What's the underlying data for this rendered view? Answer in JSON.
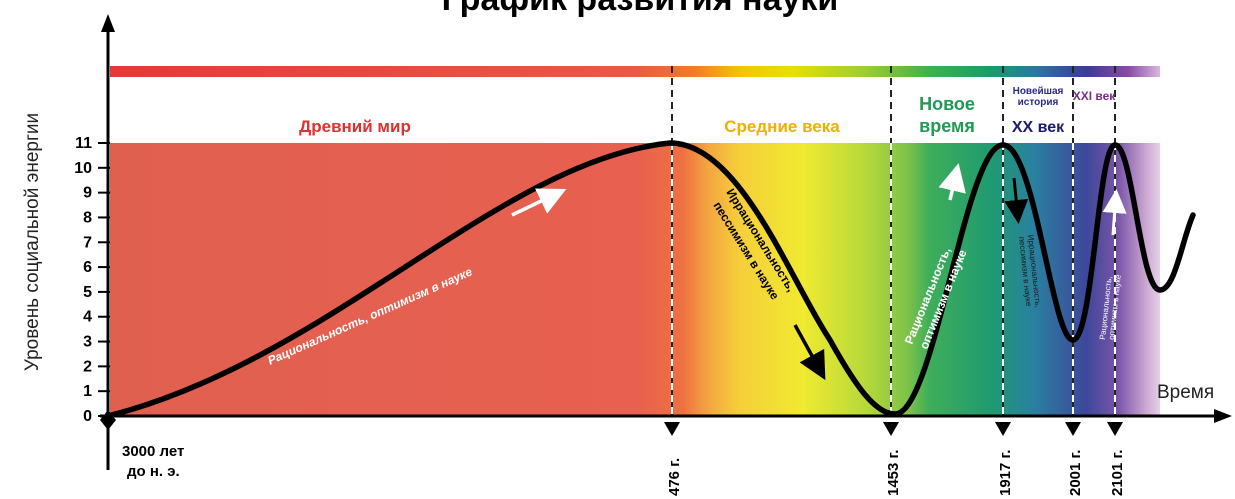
{
  "title": "График развития науки",
  "y_axis_label": "Уровень социальной энергии",
  "x_axis_label": "Время",
  "y_ticks": [
    "0",
    "1",
    "2",
    "3",
    "4",
    "5",
    "6",
    "7",
    "8",
    "9",
    "10",
    "11"
  ],
  "eras": [
    {
      "name": "Древний мир",
      "color": "#e53935"
    },
    {
      "name": "Средние века",
      "color": "#f0b400"
    },
    {
      "name_line1": "Новое",
      "name_line2": "время",
      "color": "#1e9a55"
    },
    {
      "small_line1": "Новейшая",
      "small_line2": "история",
      "name": "XX век",
      "color": "#2a2a8c"
    },
    {
      "name": "XXI век",
      "color": "#7b2d8e"
    }
  ],
  "date_labels": [
    {
      "line1": "3000 лет",
      "line2": "до н. э."
    },
    {
      "text": "476 г."
    },
    {
      "text": "1453 г."
    },
    {
      "text": "1917 г."
    },
    {
      "text": "2001 г."
    },
    {
      "text": "2101 г."
    }
  ],
  "annotations": {
    "ancient_rise": "Рациональность, оптимизм в науке",
    "medieval_fall_1": "Иррациональность,",
    "medieval_fall_2": "пессимизм в науке",
    "modern_rise_1": "Рациональность,",
    "modern_rise_2": "оптимизм в науке",
    "c20_fall_1": "Иррациональность,",
    "c20_fall_2": "пессимизм в науке",
    "c21_rise_1": "Рациональность,",
    "c21_rise_2": "оптимизм в науке"
  },
  "chart_data": {
    "type": "line",
    "x": [
      "3000 лет до н. э.",
      "476 г.",
      "1453 г.",
      "1917 г.",
      "2001 г.",
      "2101 г."
    ],
    "y": [
      0,
      11,
      0,
      11,
      3,
      11
    ],
    "ylim": [
      0,
      11
    ]
  }
}
